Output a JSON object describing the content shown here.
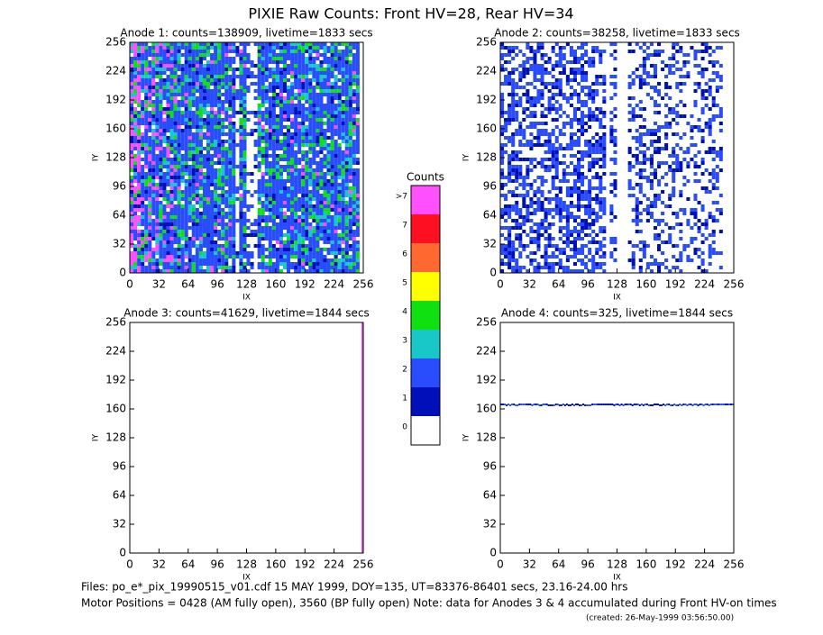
{
  "title": "PIXIE Raw Counts:  Front HV=28, Rear HV=34",
  "chart_data": [
    {
      "type": "heatmap",
      "title": "Anode 1: counts=138909, livetime=1833 secs",
      "xlabel": "IX",
      "ylabel": "IY",
      "xlim": [
        0,
        256
      ],
      "ylim": [
        0,
        256
      ],
      "xticks": [
        0,
        32,
        64,
        96,
        128,
        160,
        192,
        224,
        256
      ],
      "yticks": [
        0,
        32,
        64,
        96,
        128,
        160,
        192,
        224,
        256
      ]
    },
    {
      "type": "heatmap",
      "title": "Anode 2: counts=38258, livetime=1833 secs",
      "xlabel": "IX",
      "ylabel": "IY",
      "xlim": [
        0,
        256
      ],
      "ylim": [
        0,
        256
      ],
      "xticks": [
        0,
        32,
        64,
        96,
        128,
        160,
        192,
        224,
        256
      ],
      "yticks": [
        0,
        32,
        64,
        96,
        128,
        160,
        192,
        224,
        256
      ]
    },
    {
      "type": "heatmap",
      "title": "Anode 3: counts=41629, livetime=1844 secs",
      "xlabel": "IX",
      "ylabel": "IY",
      "xlim": [
        0,
        256
      ],
      "ylim": [
        0,
        256
      ],
      "xticks": [
        0,
        32,
        64,
        96,
        128,
        160,
        192,
        224,
        256
      ],
      "yticks": [
        0,
        32,
        64,
        96,
        128,
        160,
        192,
        224,
        256
      ]
    },
    {
      "type": "heatmap",
      "title": "Anode 4: counts=325, livetime=1844 secs",
      "xlabel": "IX",
      "ylabel": "IY",
      "xlim": [
        0,
        256
      ],
      "ylim": [
        0,
        256
      ],
      "xticks": [
        0,
        32,
        64,
        96,
        128,
        160,
        192,
        224,
        256
      ],
      "yticks": [
        0,
        32,
        64,
        96,
        128,
        160,
        192,
        224,
        256
      ]
    }
  ],
  "colorbar": {
    "title": "Counts",
    "labels": [
      "0",
      "1",
      "2",
      "3",
      "4",
      "5",
      "6",
      "7",
      ">7"
    ],
    "colors": [
      "#ffffff",
      "#0010b8",
      "#2a4cff",
      "#18c8c8",
      "#10e010",
      "#ffff00",
      "#ff6830",
      "#ff1020",
      "#ff50ff"
    ]
  },
  "footer": [
    "Files: po_e*_pix_19990515_v01.cdf    15 MAY 1999, DOY=135, UT=83376-86401 secs, 23.16-24.00 hrs",
    "Motor Positions = 0428 (AM fully open), 3560 (BP fully open)    Note: data for Anodes 3 & 4 accumulated during Front HV-on times",
    "(created: 26-May-1999 03:56:50.00)"
  ]
}
